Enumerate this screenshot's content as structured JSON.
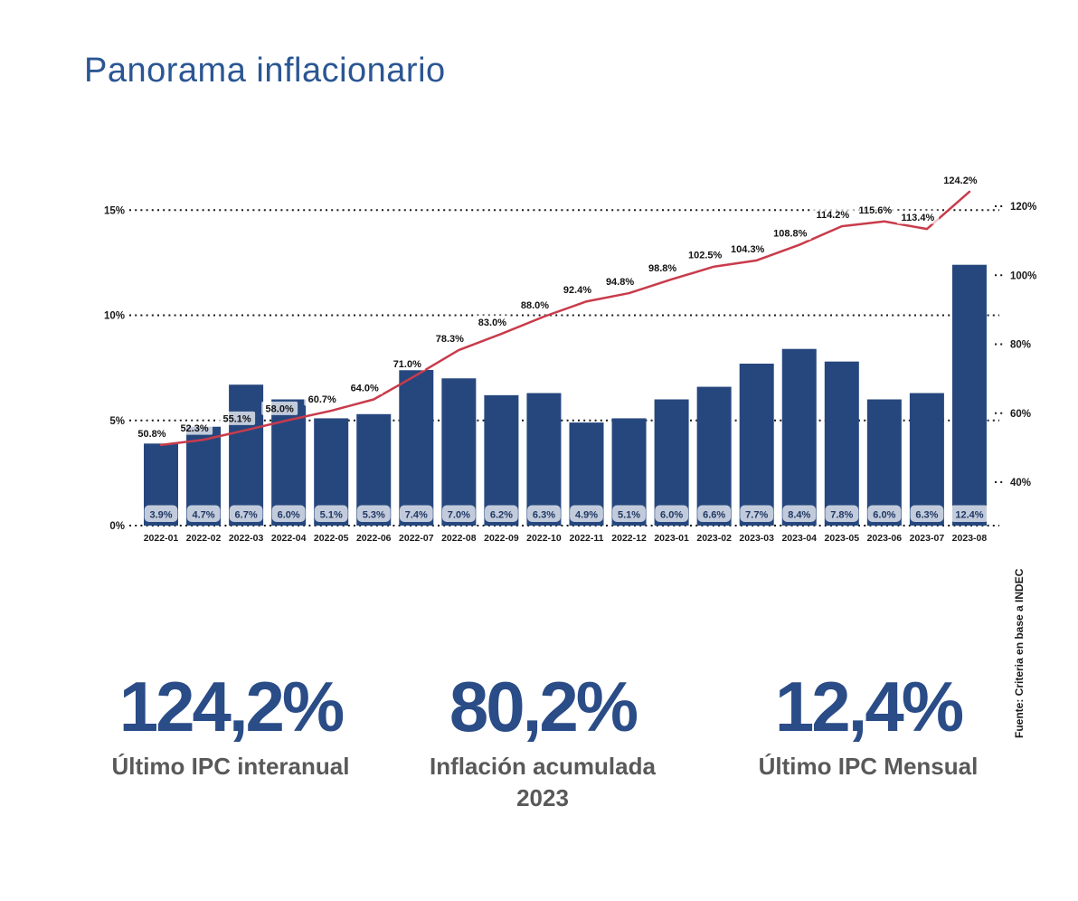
{
  "title": "Panorama inflacionario",
  "source": {
    "text": "Fuente: Criteria en base a INDEC"
  },
  "chart_data": {
    "type": "bar",
    "title": "Panorama inflacionario",
    "categories": [
      "2022-01",
      "2022-02",
      "2022-03",
      "2022-04",
      "2022-05",
      "2022-06",
      "2022-07",
      "2022-08",
      "2022-09",
      "2022-10",
      "2022-11",
      "2022-12",
      "2023-01",
      "2023-02",
      "2023-03",
      "2023-04",
      "2023-05",
      "2023-06",
      "2023-07",
      "2023-08"
    ],
    "series": [
      {
        "name": "IPC mensual",
        "type": "bar",
        "axis": "left",
        "color": "#26477E",
        "values": [
          3.9,
          4.7,
          6.7,
          6.0,
          5.1,
          5.3,
          7.4,
          7.0,
          6.2,
          6.3,
          4.9,
          5.1,
          6.0,
          6.6,
          7.7,
          8.4,
          7.8,
          6.0,
          6.3,
          12.4
        ]
      },
      {
        "name": "IPC interanual",
        "type": "line",
        "axis": "right",
        "color": "#C93B4B",
        "values": [
          50.8,
          52.3,
          55.1,
          58.0,
          60.7,
          64.0,
          71.0,
          78.3,
          83.0,
          88.0,
          92.4,
          94.8,
          98.8,
          102.5,
          104.3,
          108.8,
          114.2,
          115.6,
          113.4,
          124.2
        ]
      }
    ],
    "left_axis": {
      "tick_labels": [
        "15%",
        "10%",
        "5%",
        "0%"
      ],
      "tick_values": [
        15,
        10,
        5,
        0
      ],
      "range": [
        0,
        15
      ]
    },
    "right_axis": {
      "tick_labels": [
        "120%",
        "100%",
        "80%",
        "60%",
        "40%"
      ],
      "tick_values": [
        120,
        100,
        80,
        60,
        40
      ],
      "range": [
        30,
        125
      ]
    },
    "grid": "dotted-horizontal",
    "legend": "none",
    "bar_label_color": "#1F3864",
    "tick_label_color": "#1a1a1a",
    "label_chip_color": "rgba(255,255,255,0.72)"
  },
  "stats": [
    {
      "value": "124,2%",
      "label": "Último IPC interanual"
    },
    {
      "value": "80,2%",
      "label": "Inflación acumulada 2023"
    },
    {
      "value": "12,4%",
      "label": "Último IPC Mensual"
    }
  ],
  "colors": {
    "title": "#2B5693",
    "bar": "#26477E",
    "line": "#C93B4B",
    "stat_number": "#2A4C87",
    "stat_label": "#595959"
  }
}
